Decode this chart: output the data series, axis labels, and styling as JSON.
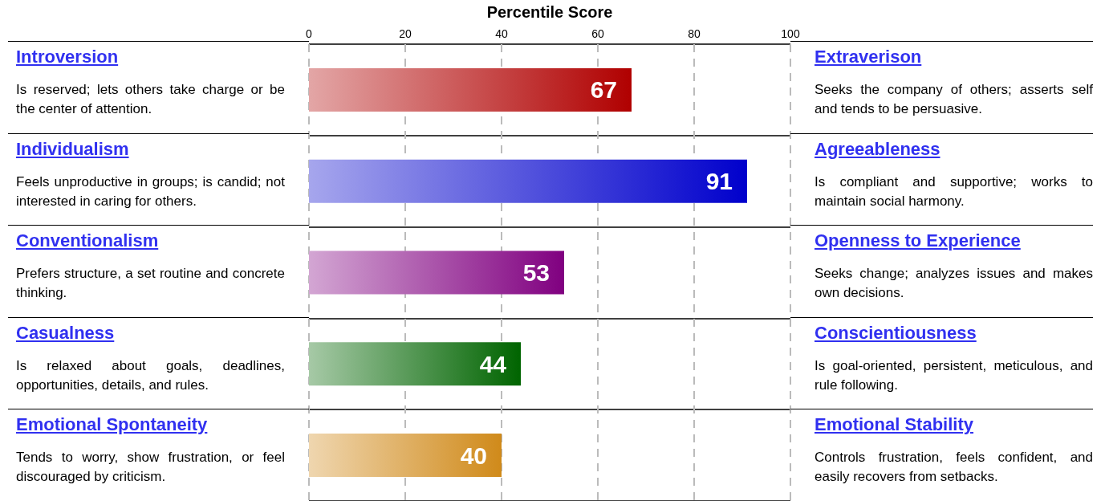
{
  "chart_data": {
    "type": "bar",
    "orientation": "horizontal",
    "xlabel": "Percentile Score",
    "categories": [
      "Introversion",
      "Individualism",
      "Conventionalism",
      "Casualness",
      "Emotional Spontaneity"
    ],
    "values": [
      67,
      91,
      53,
      44,
      40
    ],
    "colors": [
      "#b00000",
      "#0000cc",
      "#800080",
      "#006400",
      "#d08a1a"
    ],
    "xlim": [
      0,
      100
    ],
    "xticks": [
      0,
      20,
      40,
      60,
      80,
      100
    ],
    "grid": "x",
    "data_labels": true,
    "annotations": [
      "Is reserved; lets others take charge or be the center of attention.",
      "Extraverison",
      "Seeks the company of others; asserts self and tends to be persuasive.",
      "Feels unproductive in groups; is candid; not interested in caring for others.",
      "Agreeableness",
      "Is compliant and supportive; works to maintain social harmony.",
      "Prefers structure, a set routine and concrete thinking.",
      "Openness to Experience",
      "Seeks change; analyzes issues and makes own decisions.",
      "Is relaxed about goals, deadlines, opportunities, details, and rules.",
      "Conscientiousness",
      "Is goal-oriented, persistent, meticulous, and rule following.",
      "Tends to worry, show frustration, or feel discouraged by criticism.",
      "Emotional Stability",
      "Controls frustration, feels confident, and easily recovers from setbacks."
    ]
  }
}
